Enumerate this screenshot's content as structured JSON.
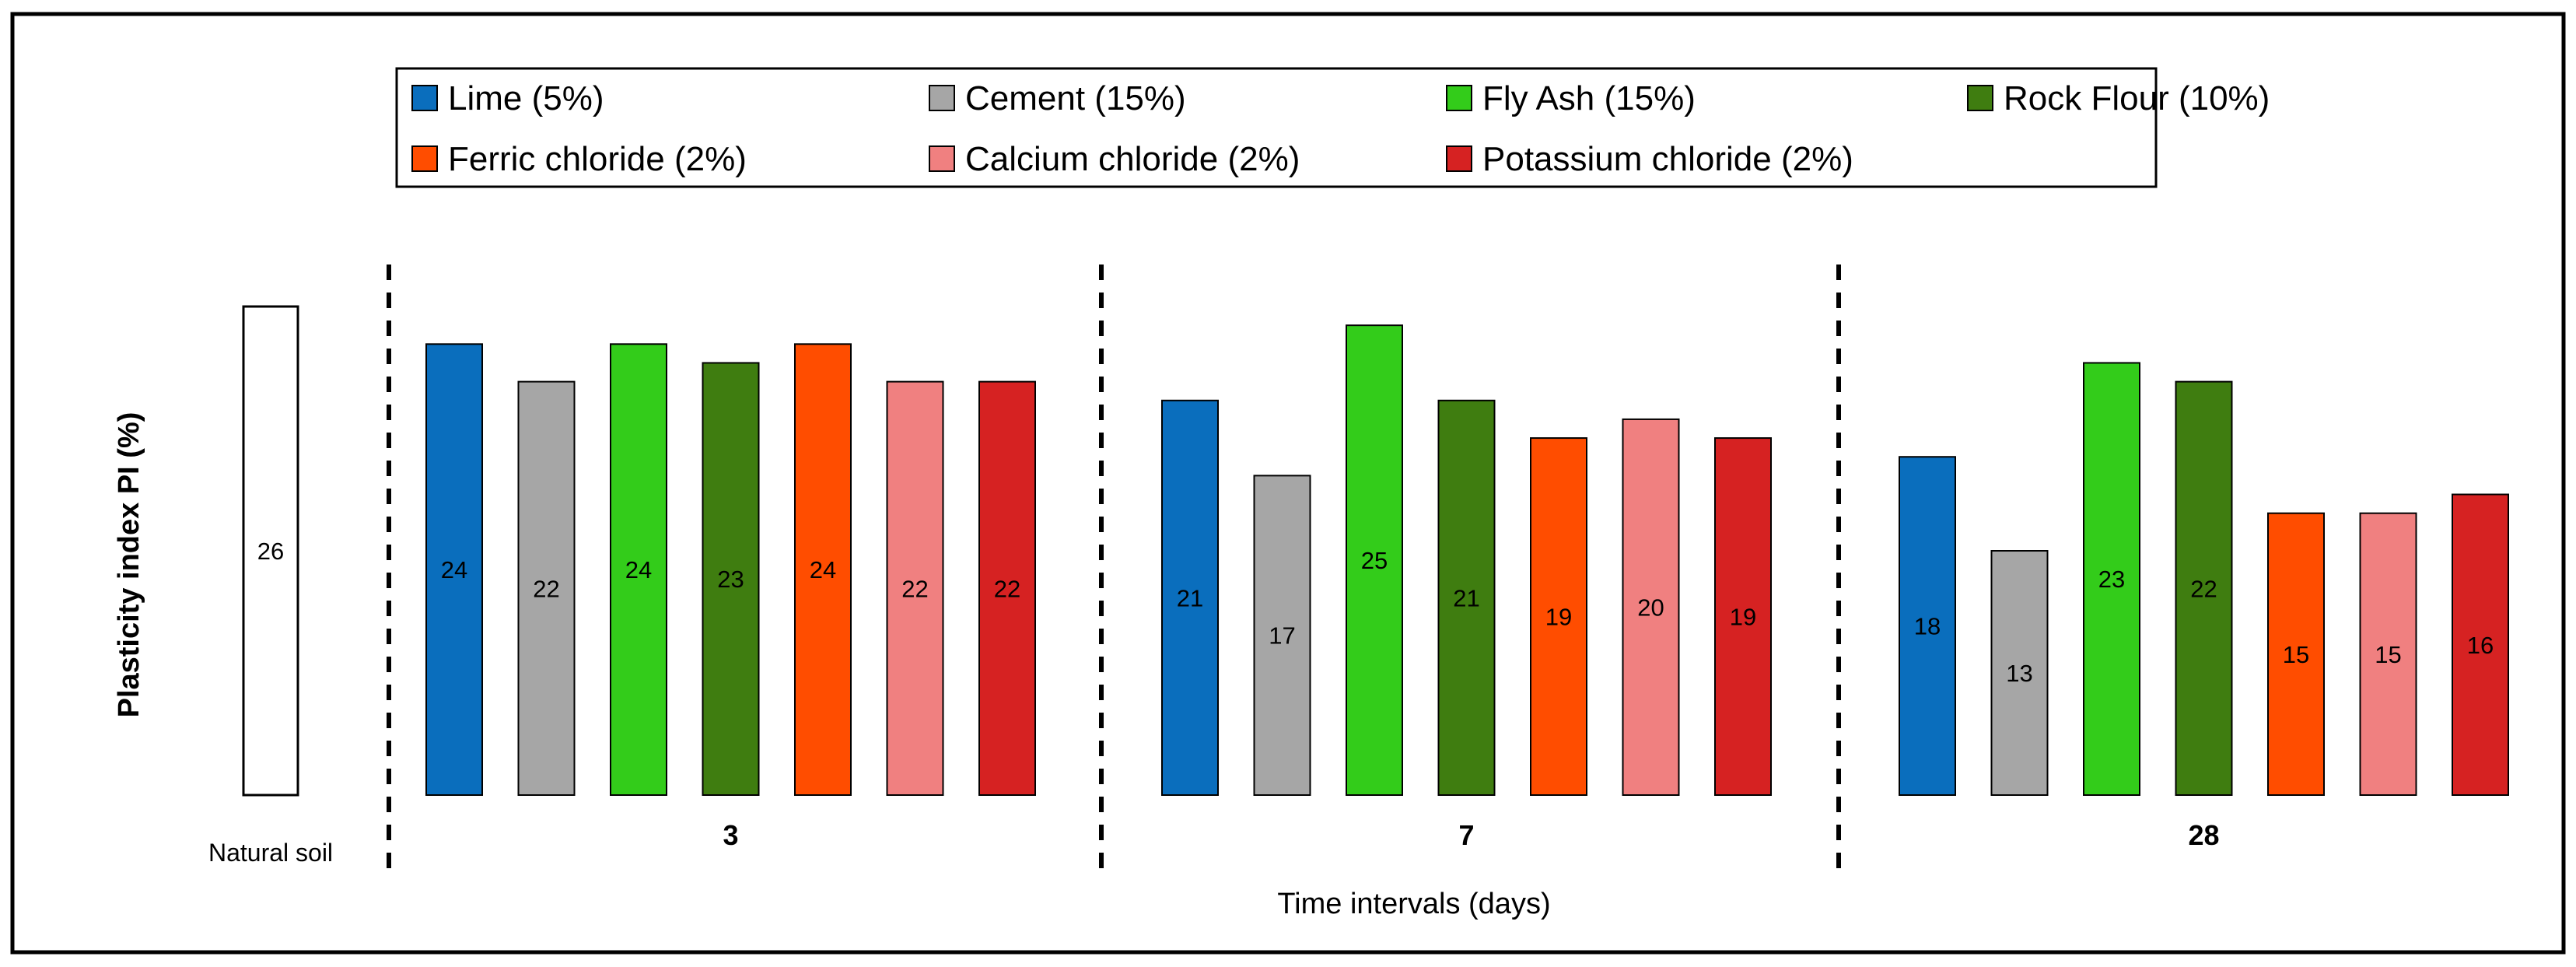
{
  "chart_data": {
    "type": "bar",
    "title": "",
    "ylabel": "Plasticity index PI  (%)",
    "xlabel": "Time intervals (days)",
    "ylim": [
      0,
      26
    ],
    "grid": false,
    "legend_position": "top",
    "baseline": {
      "label": "Natural soil",
      "value": 26,
      "value_label": "26",
      "color": "#ffffff"
    },
    "series": [
      {
        "name": "Lime (5%)",
        "color": "#0a6ebd",
        "label_color": "#000000"
      },
      {
        "name": "Cement (15%)",
        "color": "#a6a6a6",
        "label_color": "#000000"
      },
      {
        "name": "Fly Ash (15%)",
        "color": "#33cc1a",
        "label_color": "#000000"
      },
      {
        "name": "Rock Flour (10%)",
        "color": "#3f7d10",
        "label_color": "#000000"
      },
      {
        "name": "Ferric chloride (2%)",
        "color": "#ff4d00",
        "label_color": "#000000"
      },
      {
        "name": "Calcium chloride (2%)",
        "color": "#f08080",
        "label_color": "#000000"
      },
      {
        "name": "Potassium chloride  (2%)",
        "color": "#d62222",
        "label_color": "#000000"
      }
    ],
    "groups": [
      {
        "label": "3",
        "values": [
          24,
          22,
          24,
          23,
          24,
          22,
          22
        ],
        "value_labels": [
          "24",
          "22",
          "24",
          "23",
          "24",
          "22",
          "22"
        ]
      },
      {
        "label": "7",
        "values": [
          21,
          17,
          25,
          21,
          19,
          20,
          19
        ],
        "value_labels": [
          "21",
          "17",
          "25",
          "21",
          "19",
          "20",
          "19"
        ]
      },
      {
        "label": "28",
        "values": [
          18,
          13,
          23,
          22,
          15,
          15,
          16
        ],
        "value_labels": [
          "18",
          "13",
          "23",
          "22",
          "15",
          "15",
          "16"
        ]
      }
    ]
  }
}
